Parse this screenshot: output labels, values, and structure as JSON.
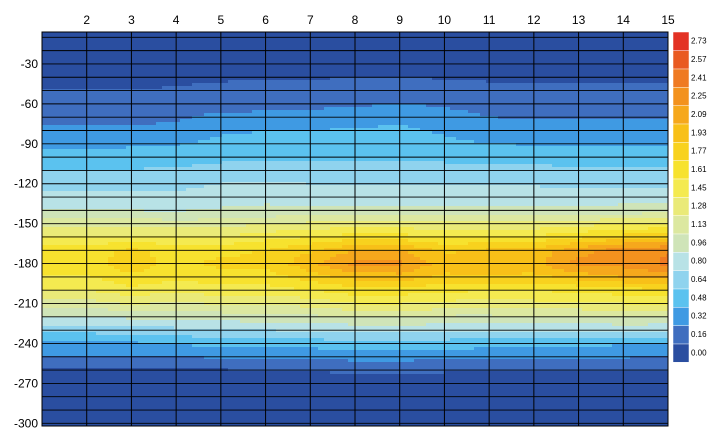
{
  "chart_data": {
    "type": "heatmap",
    "subtype": "filled-contour",
    "title": "",
    "xlabel": "",
    "ylabel": "",
    "x_axis_position": "top",
    "x_ticks": [
      2,
      3,
      4,
      5,
      6,
      7,
      8,
      9,
      10,
      11,
      12,
      13,
      14,
      15
    ],
    "xlim": [
      1,
      15
    ],
    "y_ticks": [
      -30,
      -60,
      -90,
      -120,
      -150,
      -180,
      -210,
      -240,
      -270,
      -300
    ],
    "ylim": [
      -302,
      -6
    ],
    "grid": true,
    "colorbar": {
      "position": "right",
      "levels": [
        "0.00",
        "0.16",
        "0.32",
        "0.48",
        "0.64",
        "0.80",
        "0.96",
        "1.13",
        "1.28",
        "1.45",
        "1.61",
        "1.77",
        "1.93",
        "2.09",
        "2.25",
        "2.41",
        "2.57",
        "2.73"
      ],
      "colors": [
        "#2a4ea0",
        "#3f6ebf",
        "#3f9ae3",
        "#5bc2ef",
        "#8fd3ee",
        "#b8e2e6",
        "#cfe4b8",
        "#dce8a0",
        "#eaea78",
        "#f4ea50",
        "#f7e22e",
        "#f8d21e",
        "#f8c018",
        "#f6a81c",
        "#f3921e",
        "#ef7a22",
        "#e95a22",
        "#e33224"
      ]
    },
    "x": [
      2,
      3,
      4,
      5,
      6,
      7,
      8,
      9,
      10,
      11,
      12,
      13,
      14,
      15
    ],
    "y": [
      -20,
      -40,
      -60,
      -80,
      -100,
      -120,
      -140,
      -160,
      -170,
      -180,
      -190,
      -200,
      -210,
      -220,
      -240,
      -260,
      -280,
      -300
    ],
    "z": [
      [
        0.08,
        0.08,
        0.08,
        0.08,
        0.08,
        0.08,
        0.08,
        0.08,
        0.08,
        0.08,
        0.08,
        0.08,
        0.08,
        0.08
      ],
      [
        0.12,
        0.1,
        0.12,
        0.14,
        0.15,
        0.15,
        0.16,
        0.16,
        0.15,
        0.14,
        0.14,
        0.14,
        0.14,
        0.14
      ],
      [
        0.22,
        0.22,
        0.24,
        0.26,
        0.26,
        0.28,
        0.3,
        0.32,
        0.3,
        0.26,
        0.26,
        0.26,
        0.26,
        0.26
      ],
      [
        0.34,
        0.34,
        0.36,
        0.45,
        0.48,
        0.48,
        0.5,
        0.52,
        0.45,
        0.38,
        0.36,
        0.36,
        0.36,
        0.36
      ],
      [
        0.55,
        0.56,
        0.58,
        0.6,
        0.6,
        0.62,
        0.62,
        0.62,
        0.6,
        0.58,
        0.58,
        0.58,
        0.58,
        0.58
      ],
      [
        0.72,
        0.74,
        0.74,
        0.8,
        0.82,
        0.8,
        0.8,
        0.8,
        0.8,
        0.8,
        0.78,
        0.76,
        0.76,
        0.76
      ],
      [
        0.98,
        0.96,
        0.95,
        0.98,
        1.0,
        1.0,
        1.0,
        1.0,
        1.0,
        1.0,
        1.0,
        1.0,
        1.02,
        1.05
      ],
      [
        1.45,
        1.5,
        1.45,
        1.45,
        1.55,
        1.62,
        1.7,
        1.68,
        1.62,
        1.62,
        1.65,
        1.75,
        1.85,
        1.9
      ],
      [
        1.7,
        1.8,
        1.72,
        1.72,
        1.78,
        1.9,
        2.1,
        2.1,
        1.9,
        1.95,
        1.98,
        2.18,
        2.35,
        2.4
      ],
      [
        1.72,
        1.85,
        1.7,
        1.82,
        1.8,
        2.05,
        2.3,
        2.3,
        2.0,
        2.1,
        2.05,
        2.3,
        2.3,
        2.45
      ],
      [
        1.6,
        1.75,
        1.65,
        1.7,
        1.7,
        1.85,
        2.0,
        2.02,
        1.9,
        1.9,
        1.88,
        2.0,
        2.1,
        2.15
      ],
      [
        1.45,
        1.55,
        1.5,
        1.55,
        1.55,
        1.6,
        1.7,
        1.7,
        1.65,
        1.62,
        1.62,
        1.65,
        1.7,
        1.75
      ],
      [
        1.2,
        1.3,
        1.25,
        1.3,
        1.3,
        1.35,
        1.45,
        1.45,
        1.4,
        1.38,
        1.4,
        1.4,
        1.45,
        1.45
      ],
      [
        0.95,
        1.0,
        1.0,
        1.05,
        1.05,
        1.1,
        1.12,
        1.15,
        1.1,
        1.1,
        1.12,
        1.12,
        1.15,
        1.15
      ],
      [
        0.45,
        0.45,
        0.5,
        0.52,
        0.55,
        0.55,
        0.58,
        0.58,
        0.56,
        0.55,
        0.52,
        0.52,
        0.5,
        0.48
      ],
      [
        0.14,
        0.14,
        0.14,
        0.15,
        0.16,
        0.16,
        0.18,
        0.18,
        0.17,
        0.16,
        0.16,
        0.16,
        0.16,
        0.16
      ],
      [
        0.06,
        0.06,
        0.06,
        0.06,
        0.06,
        0.06,
        0.06,
        0.06,
        0.06,
        0.06,
        0.06,
        0.06,
        0.06,
        0.06
      ],
      [
        0.04,
        0.04,
        0.04,
        0.04,
        0.04,
        0.04,
        0.04,
        0.04,
        0.04,
        0.04,
        0.04,
        0.04,
        0.04,
        0.04
      ]
    ]
  }
}
